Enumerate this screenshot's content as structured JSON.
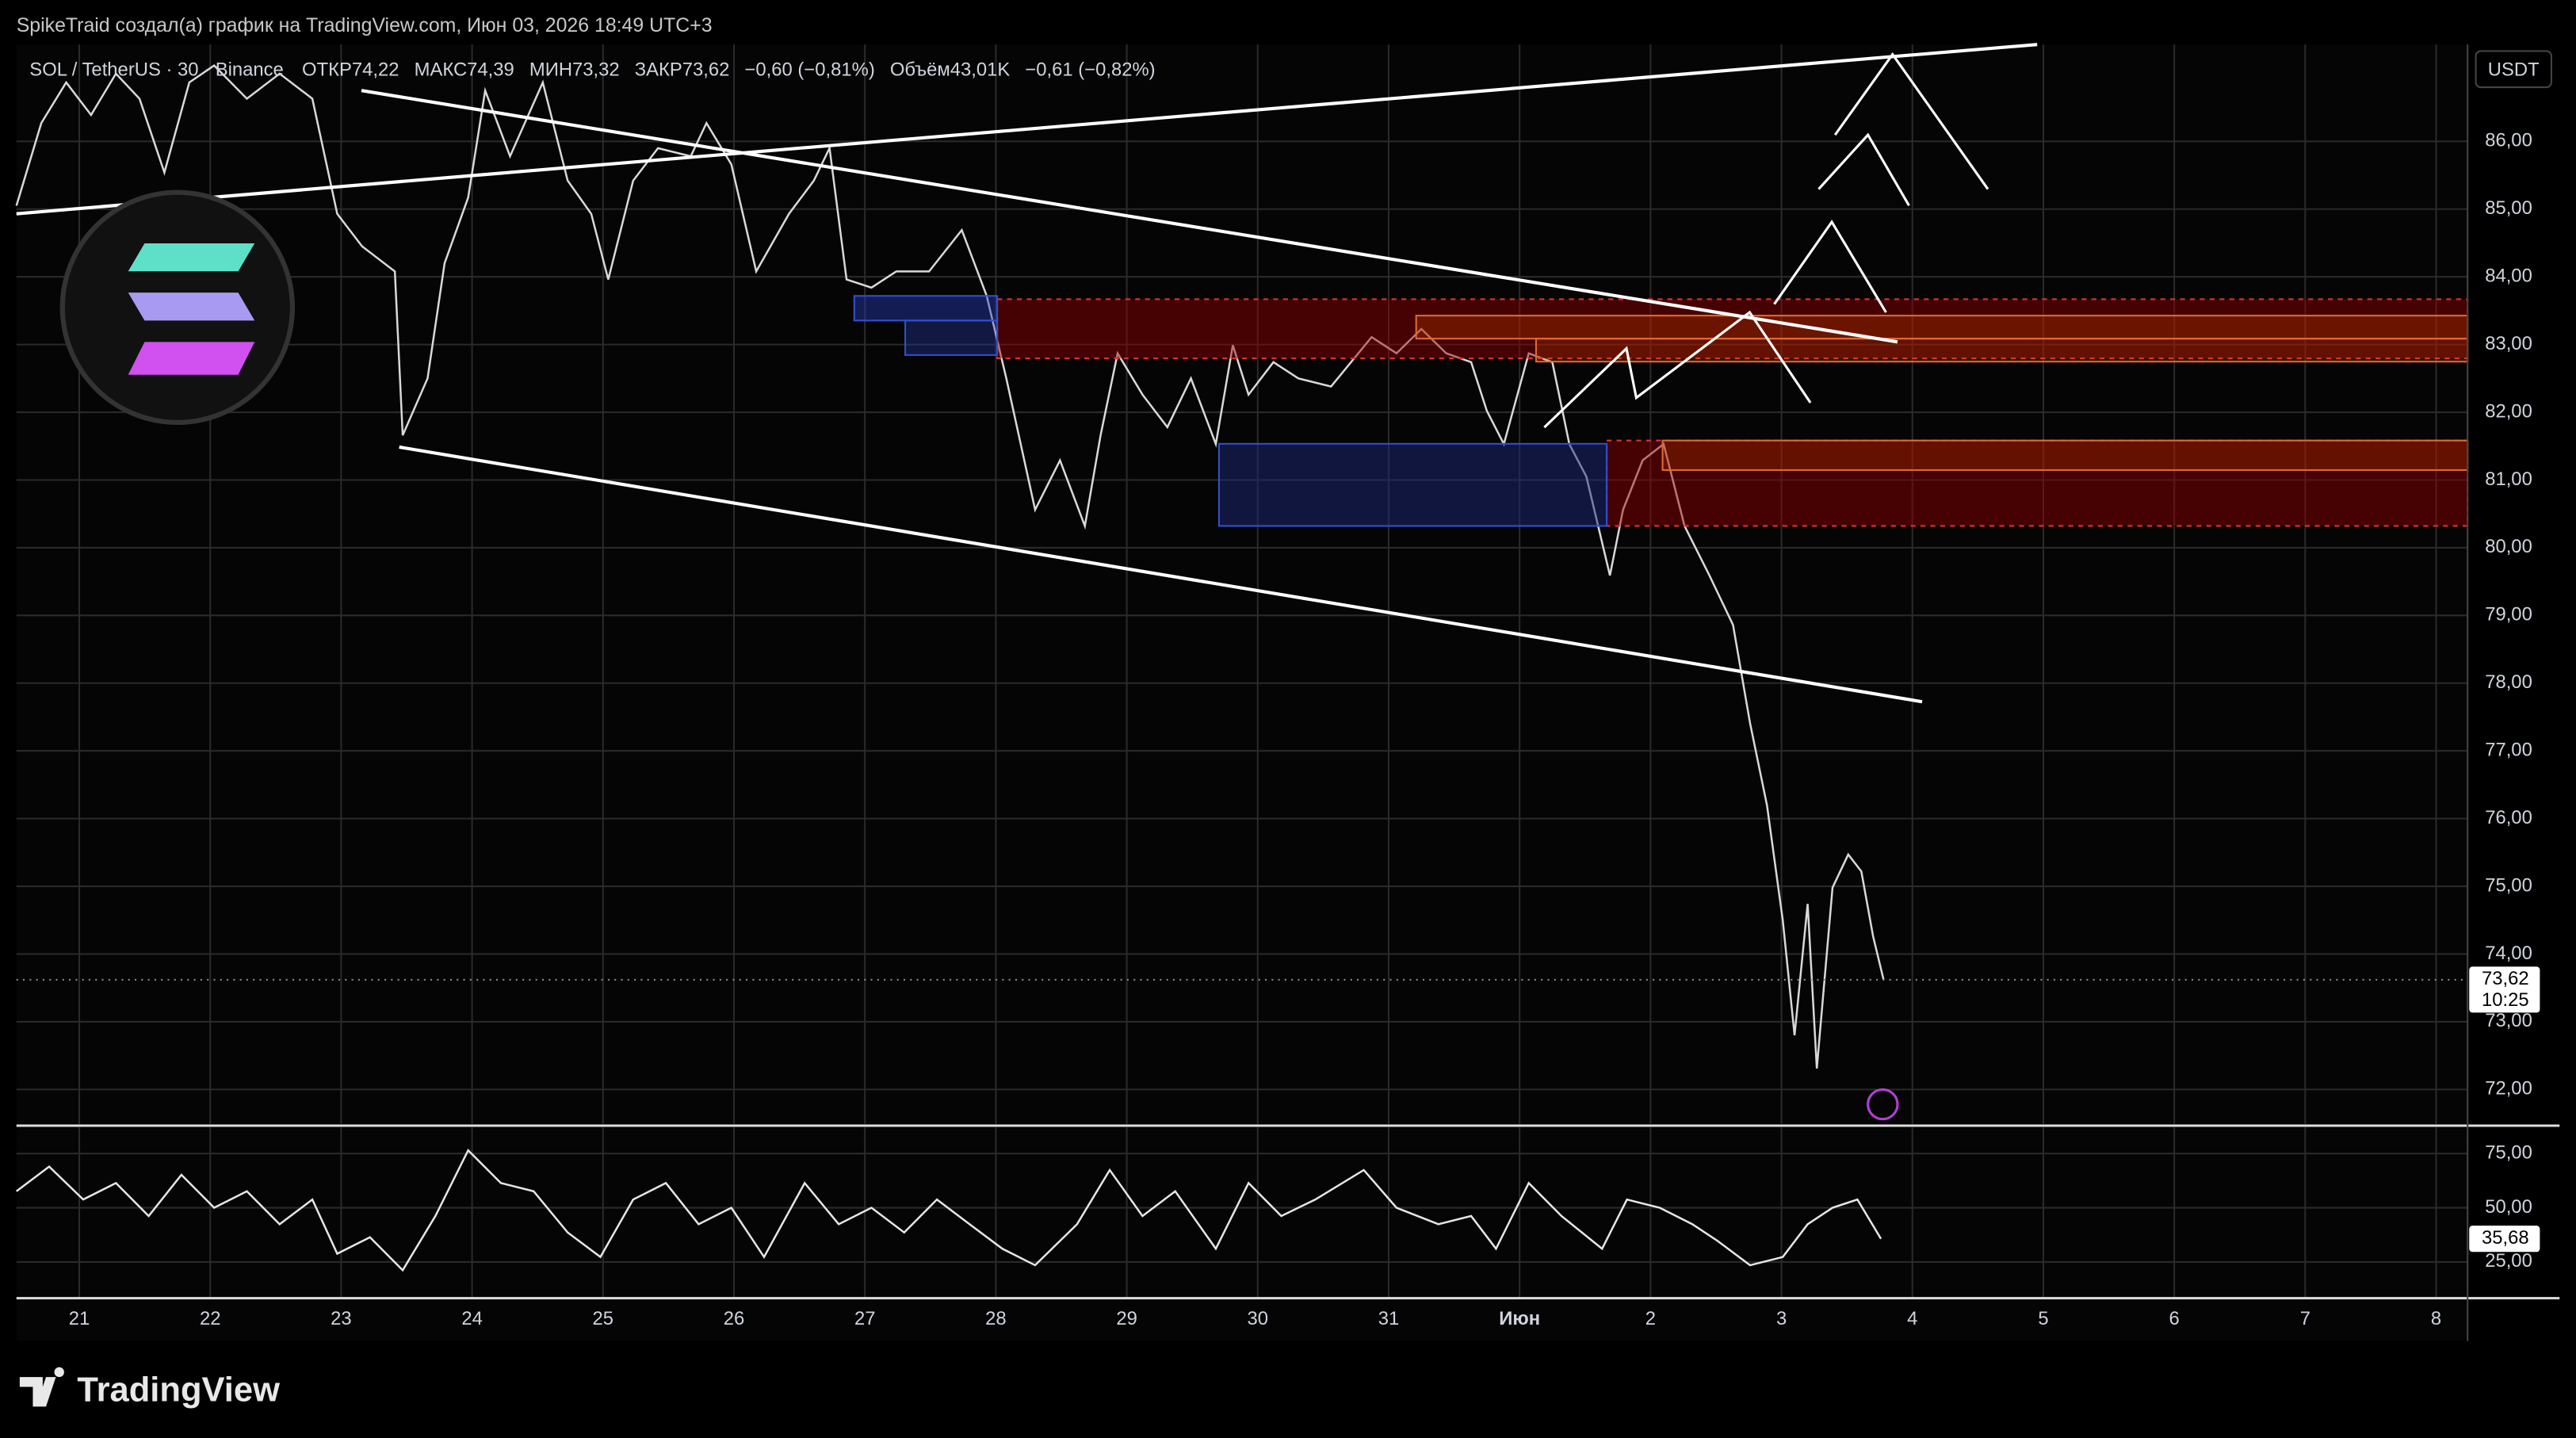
{
  "header": {
    "attribution": "SpikeTraid создал(а) график на TradingView.com, Июн 03, 2026 18:49 UTC+3"
  },
  "legend": {
    "symbol": "SOL / TetherUS · 30 · Binance",
    "open": "ОТКР74,22",
    "high": "МАКС74,39",
    "low": "МИН73,32",
    "close": "ЗАКР73,62",
    "change": "−0,60 (−0,81%)",
    "volume": "Объём43,01K",
    "volume_change": "−0,61 (−0,82%)"
  },
  "currency": "USDT",
  "brand": "TradingView",
  "chart_data": [
    {
      "type": "line",
      "color": "#d9d9d9",
      "x": [
        -0.48,
        -0.29,
        -0.1,
        0.09,
        0.28,
        0.46,
        0.65,
        0.84,
        1.03,
        1.28,
        1.53,
        1.78,
        1.97,
        2.16,
        2.41,
        2.47,
        2.66,
        2.79,
        2.97,
        3.1,
        3.29,
        3.54,
        3.73,
        3.91,
        4.04,
        4.23,
        4.42,
        4.67,
        4.79,
        4.98,
        5.17,
        5.42,
        5.61,
        5.73,
        5.86,
        6.05,
        6.24,
        6.49,
        6.74,
        6.93,
        7.08,
        7.3,
        7.49,
        7.68,
        7.8,
        7.93,
        8.12,
        8.31,
        8.49,
        8.68,
        8.81,
        8.93,
        9.12,
        9.31,
        9.56,
        9.87,
        10.06,
        10.25,
        10.44,
        10.63,
        10.75,
        10.88,
        11.07,
        11.25,
        11.38,
        11.51,
        11.69,
        11.79,
        11.94,
        12.1,
        12.26,
        12.45,
        12.63,
        12.76,
        12.89,
        13.01,
        13.1,
        13.2,
        13.27,
        13.39,
        13.51,
        13.61,
        13.7,
        13.78
      ],
      "values": [
        85.05,
        86.27,
        86.87,
        86.39,
        87.0,
        86.63,
        85.54,
        86.87,
        87.12,
        86.63,
        87.0,
        86.63,
        84.93,
        84.45,
        84.08,
        81.66,
        82.5,
        84.2,
        85.17,
        86.75,
        85.78,
        86.87,
        85.42,
        84.93,
        83.96,
        85.42,
        85.9,
        85.78,
        86.27,
        85.66,
        84.08,
        84.93,
        85.42,
        85.9,
        83.96,
        83.84,
        84.08,
        84.08,
        84.69,
        83.72,
        82.5,
        80.56,
        81.29,
        80.32,
        81.66,
        82.87,
        82.26,
        81.78,
        82.5,
        81.53,
        82.99,
        82.26,
        82.74,
        82.5,
        82.38,
        83.11,
        82.87,
        83.23,
        82.87,
        82.74,
        82.02,
        81.53,
        82.87,
        82.74,
        81.53,
        81.05,
        79.59,
        80.56,
        81.29,
        81.53,
        80.32,
        79.59,
        78.86,
        77.41,
        76.19,
        74.5,
        72.8,
        74.74,
        72.31,
        74.98,
        75.47,
        75.22,
        74.26,
        73.62
      ],
      "xlim": [
        -0.48,
        18.24
      ],
      "xticks": [
        {
          "value": 0,
          "label": "21"
        },
        {
          "value": 1,
          "label": "22"
        },
        {
          "value": 2,
          "label": "23"
        },
        {
          "value": 3,
          "label": "24"
        },
        {
          "value": 4,
          "label": "25"
        },
        {
          "value": 5,
          "label": "26"
        },
        {
          "value": 6,
          "label": "27"
        },
        {
          "value": 7,
          "label": "28"
        },
        {
          "value": 8,
          "label": "29"
        },
        {
          "value": 9,
          "label": "30"
        },
        {
          "value": 10,
          "label": "31"
        },
        {
          "value": 11,
          "label": "Июн"
        },
        {
          "value": 12,
          "label": "2"
        },
        {
          "value": 13,
          "label": "3"
        },
        {
          "value": 14,
          "label": "4"
        },
        {
          "value": 15,
          "label": "5"
        },
        {
          "value": 16,
          "label": "6"
        },
        {
          "value": 17,
          "label": "7"
        },
        {
          "value": 18,
          "label": "8"
        }
      ],
      "ylim": [
        71.49,
        87.43
      ],
      "yticks": [
        {
          "value": 72,
          "label": "72,00"
        },
        {
          "value": 73,
          "label": "73,00"
        },
        {
          "value": 74,
          "label": "74,00"
        },
        {
          "value": 75,
          "label": "75,00"
        },
        {
          "value": 76,
          "label": "76,00"
        },
        {
          "value": 77,
          "label": "77,00"
        },
        {
          "value": 78,
          "label": "78,00"
        },
        {
          "value": 79,
          "label": "79,00"
        },
        {
          "value": 80,
          "label": "80,00"
        },
        {
          "value": 81,
          "label": "81,00"
        },
        {
          "value": 82,
          "label": "82,00"
        },
        {
          "value": 83,
          "label": "83,00"
        },
        {
          "value": 84,
          "label": "84,00"
        },
        {
          "value": 85,
          "label": "85,00"
        },
        {
          "value": 86,
          "label": "86,00"
        }
      ],
      "grid": true,
      "last_value": {
        "value": 73.62,
        "label": "73,62"
      },
      "countdown": "10:25"
    },
    {
      "type": "line",
      "color": "#e6e6e6",
      "x": [
        -0.48,
        -0.23,
        0.03,
        0.28,
        0.53,
        0.78,
        1.03,
        1.28,
        1.53,
        1.78,
        1.97,
        2.22,
        2.47,
        2.72,
        2.97,
        3.22,
        3.47,
        3.73,
        3.98,
        4.23,
        4.48,
        4.73,
        4.98,
        5.23,
        5.54,
        5.8,
        6.05,
        6.3,
        6.55,
        6.8,
        7.05,
        7.3,
        7.62,
        7.87,
        8.12,
        8.37,
        8.68,
        8.93,
        9.18,
        9.44,
        9.81,
        10.06,
        10.38,
        10.63,
        10.82,
        11.07,
        11.32,
        11.63,
        11.82,
        12.07,
        12.32,
        12.51,
        12.76,
        13.01,
        13.2,
        13.39,
        13.58,
        13.76
      ],
      "values": [
        57.6,
        69,
        53.8,
        61.4,
        46.2,
        65.2,
        50,
        57.6,
        42.4,
        53.8,
        28.8,
        36.4,
        21.2,
        46.2,
        76.5,
        61.4,
        57.6,
        38.6,
        27.3,
        53.8,
        61.4,
        42.4,
        50,
        27.3,
        61.4,
        42.4,
        50,
        38.6,
        53.8,
        42.4,
        31.1,
        23.5,
        42.4,
        67.4,
        46.2,
        57.6,
        31.1,
        61.4,
        46.2,
        53.8,
        67.4,
        50,
        42.4,
        46.2,
        31.1,
        61.4,
        46.2,
        31.1,
        53.8,
        50,
        42.4,
        34.8,
        23.5,
        27.3,
        42.4,
        50,
        53.8,
        35.68
      ],
      "xlim": [
        -0.48,
        18.24
      ],
      "ylim": [
        8.3,
        87.1
      ],
      "yticks": [
        {
          "value": 25,
          "label": "25,00"
        },
        {
          "value": 50,
          "label": "50,00"
        },
        {
          "value": 75,
          "label": "75,00"
        }
      ],
      "grid": true,
      "last_value": {
        "value": 35.68,
        "label": "35,68"
      }
    }
  ]
}
